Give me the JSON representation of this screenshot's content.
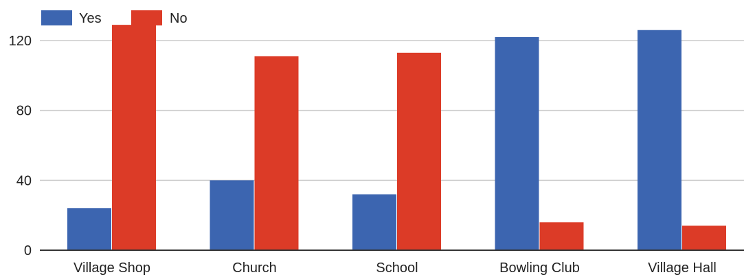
{
  "chart_data": {
    "type": "bar",
    "title": "",
    "xlabel": "",
    "ylabel": "",
    "categories": [
      "Village Shop",
      "Church",
      "School",
      "Bowling Club",
      "Village Hall"
    ],
    "series": [
      {
        "name": "Yes",
        "color": "#3c65b0",
        "values": [
          24,
          40,
          32,
          122,
          126
        ]
      },
      {
        "name": "No",
        "color": "#dc3b27",
        "values": [
          129,
          111,
          113,
          16,
          14
        ]
      }
    ],
    "ylim": [
      0,
      135
    ],
    "yticks": [
      0,
      40,
      80,
      120
    ],
    "grid": true,
    "legend_position": "top-left"
  }
}
